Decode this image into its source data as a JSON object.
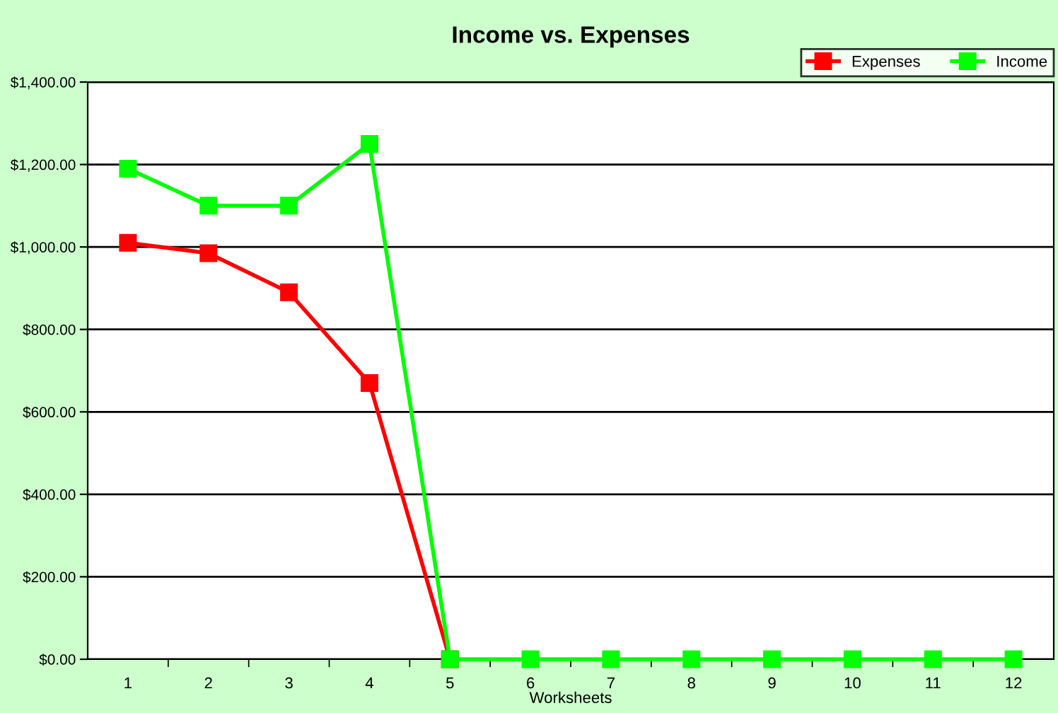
{
  "chart_data": {
    "type": "line",
    "title": "Income vs. Expenses",
    "xlabel": "Worksheets",
    "categories": [
      "1",
      "2",
      "3",
      "4",
      "5",
      "6",
      "7",
      "8",
      "9",
      "10",
      "11",
      "12"
    ],
    "series": [
      {
        "name": "Expenses",
        "color": "#ff0000",
        "values": [
          1010,
          985,
          890,
          670,
          0,
          null,
          null,
          null,
          null,
          null,
          null,
          null
        ]
      },
      {
        "name": "Income",
        "color": "#00ff00",
        "values": [
          1190,
          1100,
          1100,
          1250,
          0,
          0,
          0,
          0,
          0,
          0,
          0,
          0
        ]
      }
    ],
    "ylim": [
      0,
      1400
    ],
    "yticks": [
      {
        "value": 0,
        "label": "$0.00"
      },
      {
        "value": 200,
        "label": "$200.00"
      },
      {
        "value": 400,
        "label": "$400.00"
      },
      {
        "value": 600,
        "label": "$600.00"
      },
      {
        "value": 800,
        "label": "$800.00"
      },
      {
        "value": 1000,
        "label": "$1,000.00"
      },
      {
        "value": 1200,
        "label": "$1,200.00"
      },
      {
        "value": 1400,
        "label": "$1,400.00"
      }
    ],
    "grid": "y",
    "legend": "top right",
    "marker": "square",
    "line_style": "solid"
  }
}
